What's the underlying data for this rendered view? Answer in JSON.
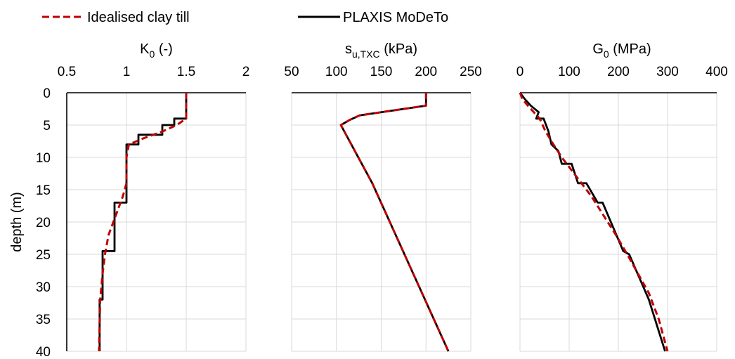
{
  "legend": {
    "idealised": "Idealised clay till",
    "plaxis": "PLAXIS MoDeTo"
  },
  "colors": {
    "idealised": "#c00000",
    "plaxis": "#000000",
    "grid": "#d9d9d9"
  },
  "y_axis": {
    "label": "depth (m)",
    "ticks": [
      "0",
      "5",
      "10",
      "15",
      "20",
      "25",
      "30",
      "35",
      "40"
    ],
    "ylim": [
      0,
      40
    ],
    "inverted": true
  },
  "chart_data": [
    {
      "type": "line",
      "title": "K0 (-)",
      "title_main": "K",
      "title_sub": "0",
      "title_rest": " (-)",
      "xlim": [
        0.5,
        2
      ],
      "xticks": [
        "0.5",
        "1",
        "1.5",
        "2"
      ],
      "grid": true,
      "legend_position": "top",
      "series": [
        {
          "name": "PLAXIS MoDeTo",
          "x": [
            1.5,
            1.5,
            1.4,
            1.4,
            1.3,
            1.3,
            1.1,
            1.1,
            1.0,
            1.0,
            0.9,
            0.9,
            0.8,
            0.8,
            0.775,
            0.775
          ],
          "y": [
            0,
            4,
            4,
            5,
            5,
            6.5,
            6.5,
            8,
            8,
            17,
            17,
            24.5,
            24.5,
            32,
            32,
            40
          ]
        },
        {
          "name": "Idealised clay till",
          "x": [
            1.5,
            1.5,
            1.42,
            1.3,
            1.15,
            1.02,
            1.0,
            1.0,
            0.97,
            0.93,
            0.85,
            0.82,
            0.8,
            0.78,
            0.77
          ],
          "y": [
            0,
            4,
            5,
            6,
            7,
            8,
            10,
            14,
            16,
            18,
            22,
            25,
            28,
            32,
            40
          ]
        }
      ]
    },
    {
      "type": "line",
      "title": "su,TXC (kPa)",
      "title_main": "s",
      "title_sub": "u,TXC",
      "title_rest": " (kPa)",
      "xlim": [
        50,
        250
      ],
      "xticks": [
        "50",
        "100",
        "150",
        "200",
        "250"
      ],
      "grid": true,
      "series": [
        {
          "name": "PLAXIS MoDeTo",
          "x": [
            200,
            200,
            126,
            115,
            105,
            140,
            225
          ],
          "y": [
            0,
            2,
            3.5,
            4.2,
            5,
            14,
            40
          ]
        },
        {
          "name": "Idealised clay till",
          "x": [
            200,
            200,
            126,
            115,
            105,
            140,
            225
          ],
          "y": [
            0,
            2,
            3.5,
            4.2,
            5,
            14,
            40
          ]
        }
      ]
    },
    {
      "type": "line",
      "title": "G0 (MPa)",
      "title_main": "G",
      "title_sub": "0",
      "title_rest": " (MPa)",
      "xlim": [
        0,
        400
      ],
      "xticks": [
        "0",
        "100",
        "200",
        "300",
        "400"
      ],
      "grid": true,
      "series": [
        {
          "name": "PLAXIS MoDeTo",
          "x": [
            0,
            10,
            10,
            22,
            22,
            38,
            38,
            33,
            33,
            48,
            48,
            58,
            58,
            64,
            64,
            78,
            78,
            85,
            85,
            105,
            105,
            118,
            118,
            135,
            135,
            158,
            158,
            168,
            168,
            210,
            210,
            222,
            222,
            262,
            262,
            295
          ],
          "y": [
            0,
            1,
            1,
            2,
            2,
            3,
            3,
            4,
            4,
            4,
            4,
            6,
            6,
            8,
            8,
            9,
            9,
            11,
            11,
            11,
            11,
            14,
            14,
            14,
            14,
            17,
            17,
            17,
            17,
            24.5,
            24.5,
            25,
            25,
            32,
            32,
            40
          ]
        },
        {
          "name": "Idealised clay till",
          "x": [
            0,
            5,
            16,
            28,
            40,
            52,
            68,
            85,
            105,
            125,
            145,
            170,
            195,
            218,
            240,
            262,
            282,
            300
          ],
          "y": [
            0,
            1,
            2,
            3,
            4,
            6,
            8,
            10,
            12,
            14,
            16,
            19,
            22,
            25,
            28,
            31,
            35,
            40
          ]
        }
      ]
    }
  ]
}
